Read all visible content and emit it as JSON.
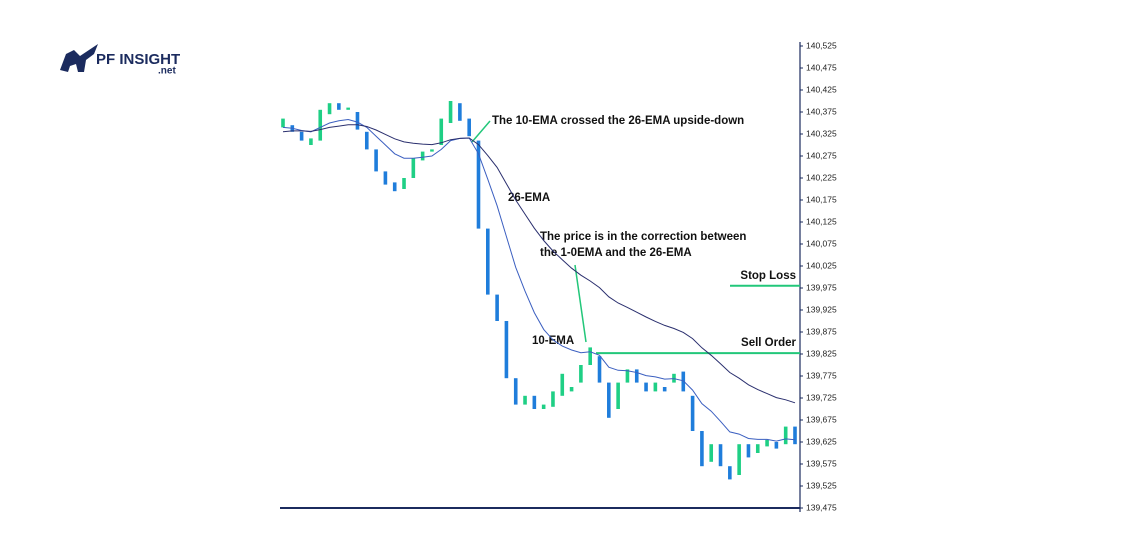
{
  "logo": {
    "name": "PF INSIGHT",
    "suffix": ".net"
  },
  "chart_data": {
    "type": "candlestick",
    "annotations": [
      "The 10-EMA crossed the 26-EMA upside-down",
      "The price is in the correction between",
      "the 1-0EMA and the 26-EMA"
    ],
    "open": [
      140340,
      140345,
      140330,
      140300,
      140310,
      140370,
      140395,
      140380,
      140375,
      140330,
      140290,
      140240,
      140215,
      140200,
      140225,
      140265,
      140285,
      140300,
      140350,
      140395,
      140360,
      140310,
      140110,
      139960,
      139900,
      139770,
      139710,
      139730,
      139700,
      139705,
      139730,
      139740,
      139760,
      139800,
      139820,
      139760,
      139700,
      139760,
      139790,
      139760,
      139740,
      139750,
      139760,
      139785,
      139730,
      139650,
      139580,
      139620,
      139570,
      139550,
      139620,
      139600,
      139615,
      139625,
      139620,
      139660
    ],
    "close": [
      140360,
      140330,
      140310,
      140315,
      140380,
      140395,
      140380,
      140385,
      140335,
      140290,
      140240,
      140210,
      140195,
      140225,
      140270,
      140285,
      140290,
      140360,
      140400,
      140355,
      140320,
      140110,
      139960,
      139900,
      139770,
      139710,
      139730,
      139700,
      139710,
      139740,
      139780,
      139750,
      139800,
      139840,
      139760,
      139680,
      139760,
      139790,
      139760,
      139740,
      139760,
      139740,
      139780,
      139740,
      139650,
      139570,
      139620,
      139570,
      139540,
      139620,
      139590,
      139620,
      139630,
      139610,
      139660,
      139620
    ],
    "up_color": "#1fcf85",
    "down_color": "#1f7ddb",
    "series": [
      {
        "name": "10-EMA",
        "color": "#3b5fc0",
        "values": [
          140340,
          140338,
          140333,
          140330,
          140340,
          140350,
          140355,
          140358,
          140352,
          140340,
          140320,
          140300,
          140280,
          140270,
          140270,
          140272,
          140275,
          140290,
          140310,
          140315,
          140316,
          140280,
          140222,
          140162,
          140092,
          140022,
          139968,
          139919,
          139881,
          139857,
          139843,
          139834,
          139828,
          139830,
          139822,
          139795,
          139788,
          139787,
          139783,
          139776,
          139773,
          139768,
          139769,
          139764,
          139743,
          139712,
          139695,
          139672,
          139648,
          139643,
          139633,
          139631,
          139631,
          139627,
          139632,
          139630
        ]
      },
      {
        "name": "26-EMA",
        "color": "#2a2f6e",
        "values": [
          140330,
          140332,
          140332,
          140331,
          140335,
          140340,
          140343,
          140346,
          140346,
          140342,
          140334,
          140324,
          140314,
          140307,
          140304,
          140302,
          140301,
          140305,
          140312,
          140315,
          140316,
          140301,
          140276,
          140249,
          140212,
          140175,
          140143,
          140111,
          140083,
          140059,
          140039,
          140020,
          140004,
          139991,
          139976,
          139955,
          139941,
          139931,
          139920,
          139909,
          139899,
          139890,
          139883,
          139874,
          139860,
          139839,
          139822,
          139803,
          139783,
          139770,
          139755,
          139744,
          139735,
          139726,
          139721,
          139714
        ]
      }
    ],
    "levels": [
      {
        "label": "Stop Loss",
        "value": 139980,
        "color": "#22c77a"
      },
      {
        "label": "Sell Order",
        "value": 139827,
        "color": "#22c77a"
      }
    ],
    "ylim": [
      139475,
      140525
    ],
    "yticks": [
      {
        "value": 139475,
        "label": "139,475"
      },
      {
        "value": 139525,
        "label": "139,525"
      },
      {
        "value": 139575,
        "label": "139,575"
      },
      {
        "value": 139625,
        "label": "139,625"
      },
      {
        "value": 139675,
        "label": "139,675"
      },
      {
        "value": 139725,
        "label": "139,725"
      },
      {
        "value": 139775,
        "label": "139,775"
      },
      {
        "value": 139825,
        "label": "139,825"
      },
      {
        "value": 139875,
        "label": "139,875"
      },
      {
        "value": 139925,
        "label": "139,925"
      },
      {
        "value": 139975,
        "label": "139,975"
      },
      {
        "value": 140025,
        "label": "140,025"
      },
      {
        "value": 140075,
        "label": "140,075"
      },
      {
        "value": 140125,
        "label": "140,125"
      },
      {
        "value": 140175,
        "label": "140,175"
      },
      {
        "value": 140225,
        "label": "140,225"
      },
      {
        "value": 140275,
        "label": "140,275"
      },
      {
        "value": 140325,
        "label": "140,325"
      },
      {
        "value": 140375,
        "label": "140,375"
      },
      {
        "value": 140425,
        "label": "140,425"
      },
      {
        "value": 140475,
        "label": "140,475"
      },
      {
        "value": 140525,
        "label": "140,525"
      }
    ]
  }
}
